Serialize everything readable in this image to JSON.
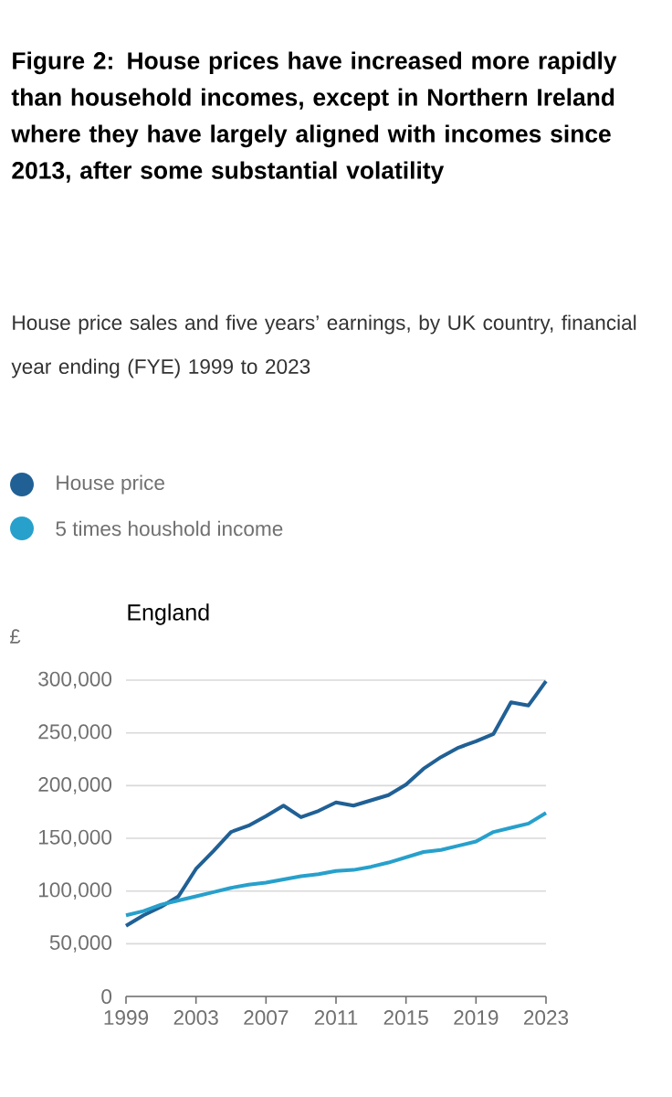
{
  "chart_data": {
    "type": "line",
    "title": "**Figure 2: House prices have increased more rapidly than household incomes, except in Northern Ireland where they have largely aligned with incomes since 2013, after some substantial volatility**",
    "subtitle": "House price sales and five years’ earnings, by UK country, financial year ending (FYE) 1999 to 2023",
    "annotations": [
      "England"
    ],
    "ylabel": "£",
    "x": [
      1999,
      2000,
      2001,
      2002,
      2003,
      2004,
      2005,
      2006,
      2007,
      2008,
      2009,
      2010,
      2011,
      2012,
      2013,
      2014,
      2015,
      2016,
      2017,
      2018,
      2019,
      2020,
      2021,
      2022,
      2023
    ],
    "series": [
      {
        "name": "House price",
        "color": "#206095",
        "values": [
          67000,
          77000,
          85000,
          95000,
          121000,
          138000,
          156000,
          162000,
          171000,
          181000,
          170000,
          176000,
          184000,
          181000,
          186000,
          191000,
          201000,
          216000,
          227000,
          236000,
          242000,
          249000,
          279000,
          276000,
          299000
        ]
      },
      {
        "name": "5 times houshold income",
        "color": "#27a0cc",
        "values": [
          77000,
          81000,
          87000,
          91000,
          95000,
          99000,
          103000,
          106000,
          108000,
          111000,
          114000,
          116000,
          119000,
          120000,
          123000,
          127000,
          132000,
          137000,
          139000,
          143000,
          147000,
          156000,
          160000,
          164000,
          174000
        ]
      }
    ],
    "xlim": [
      1999,
      2023
    ],
    "xticks": [
      1999,
      2003,
      2007,
      2011,
      2015,
      2019,
      2023
    ],
    "ylim": [
      0,
      300000
    ],
    "yticks": [
      {
        "value": 0,
        "label": "0"
      },
      {
        "value": 50000,
        "label": "50,000"
      },
      {
        "value": 100000,
        "label": "100,000"
      },
      {
        "value": 150000,
        "label": "150,000"
      },
      {
        "value": 200000,
        "label": "200,000"
      },
      {
        "value": 250000,
        "label": "250,000"
      },
      {
        "value": 300000,
        "label": "300,000"
      }
    ],
    "grid": "y",
    "legend": "top",
    "line_style": "solid",
    "marker": "none"
  }
}
